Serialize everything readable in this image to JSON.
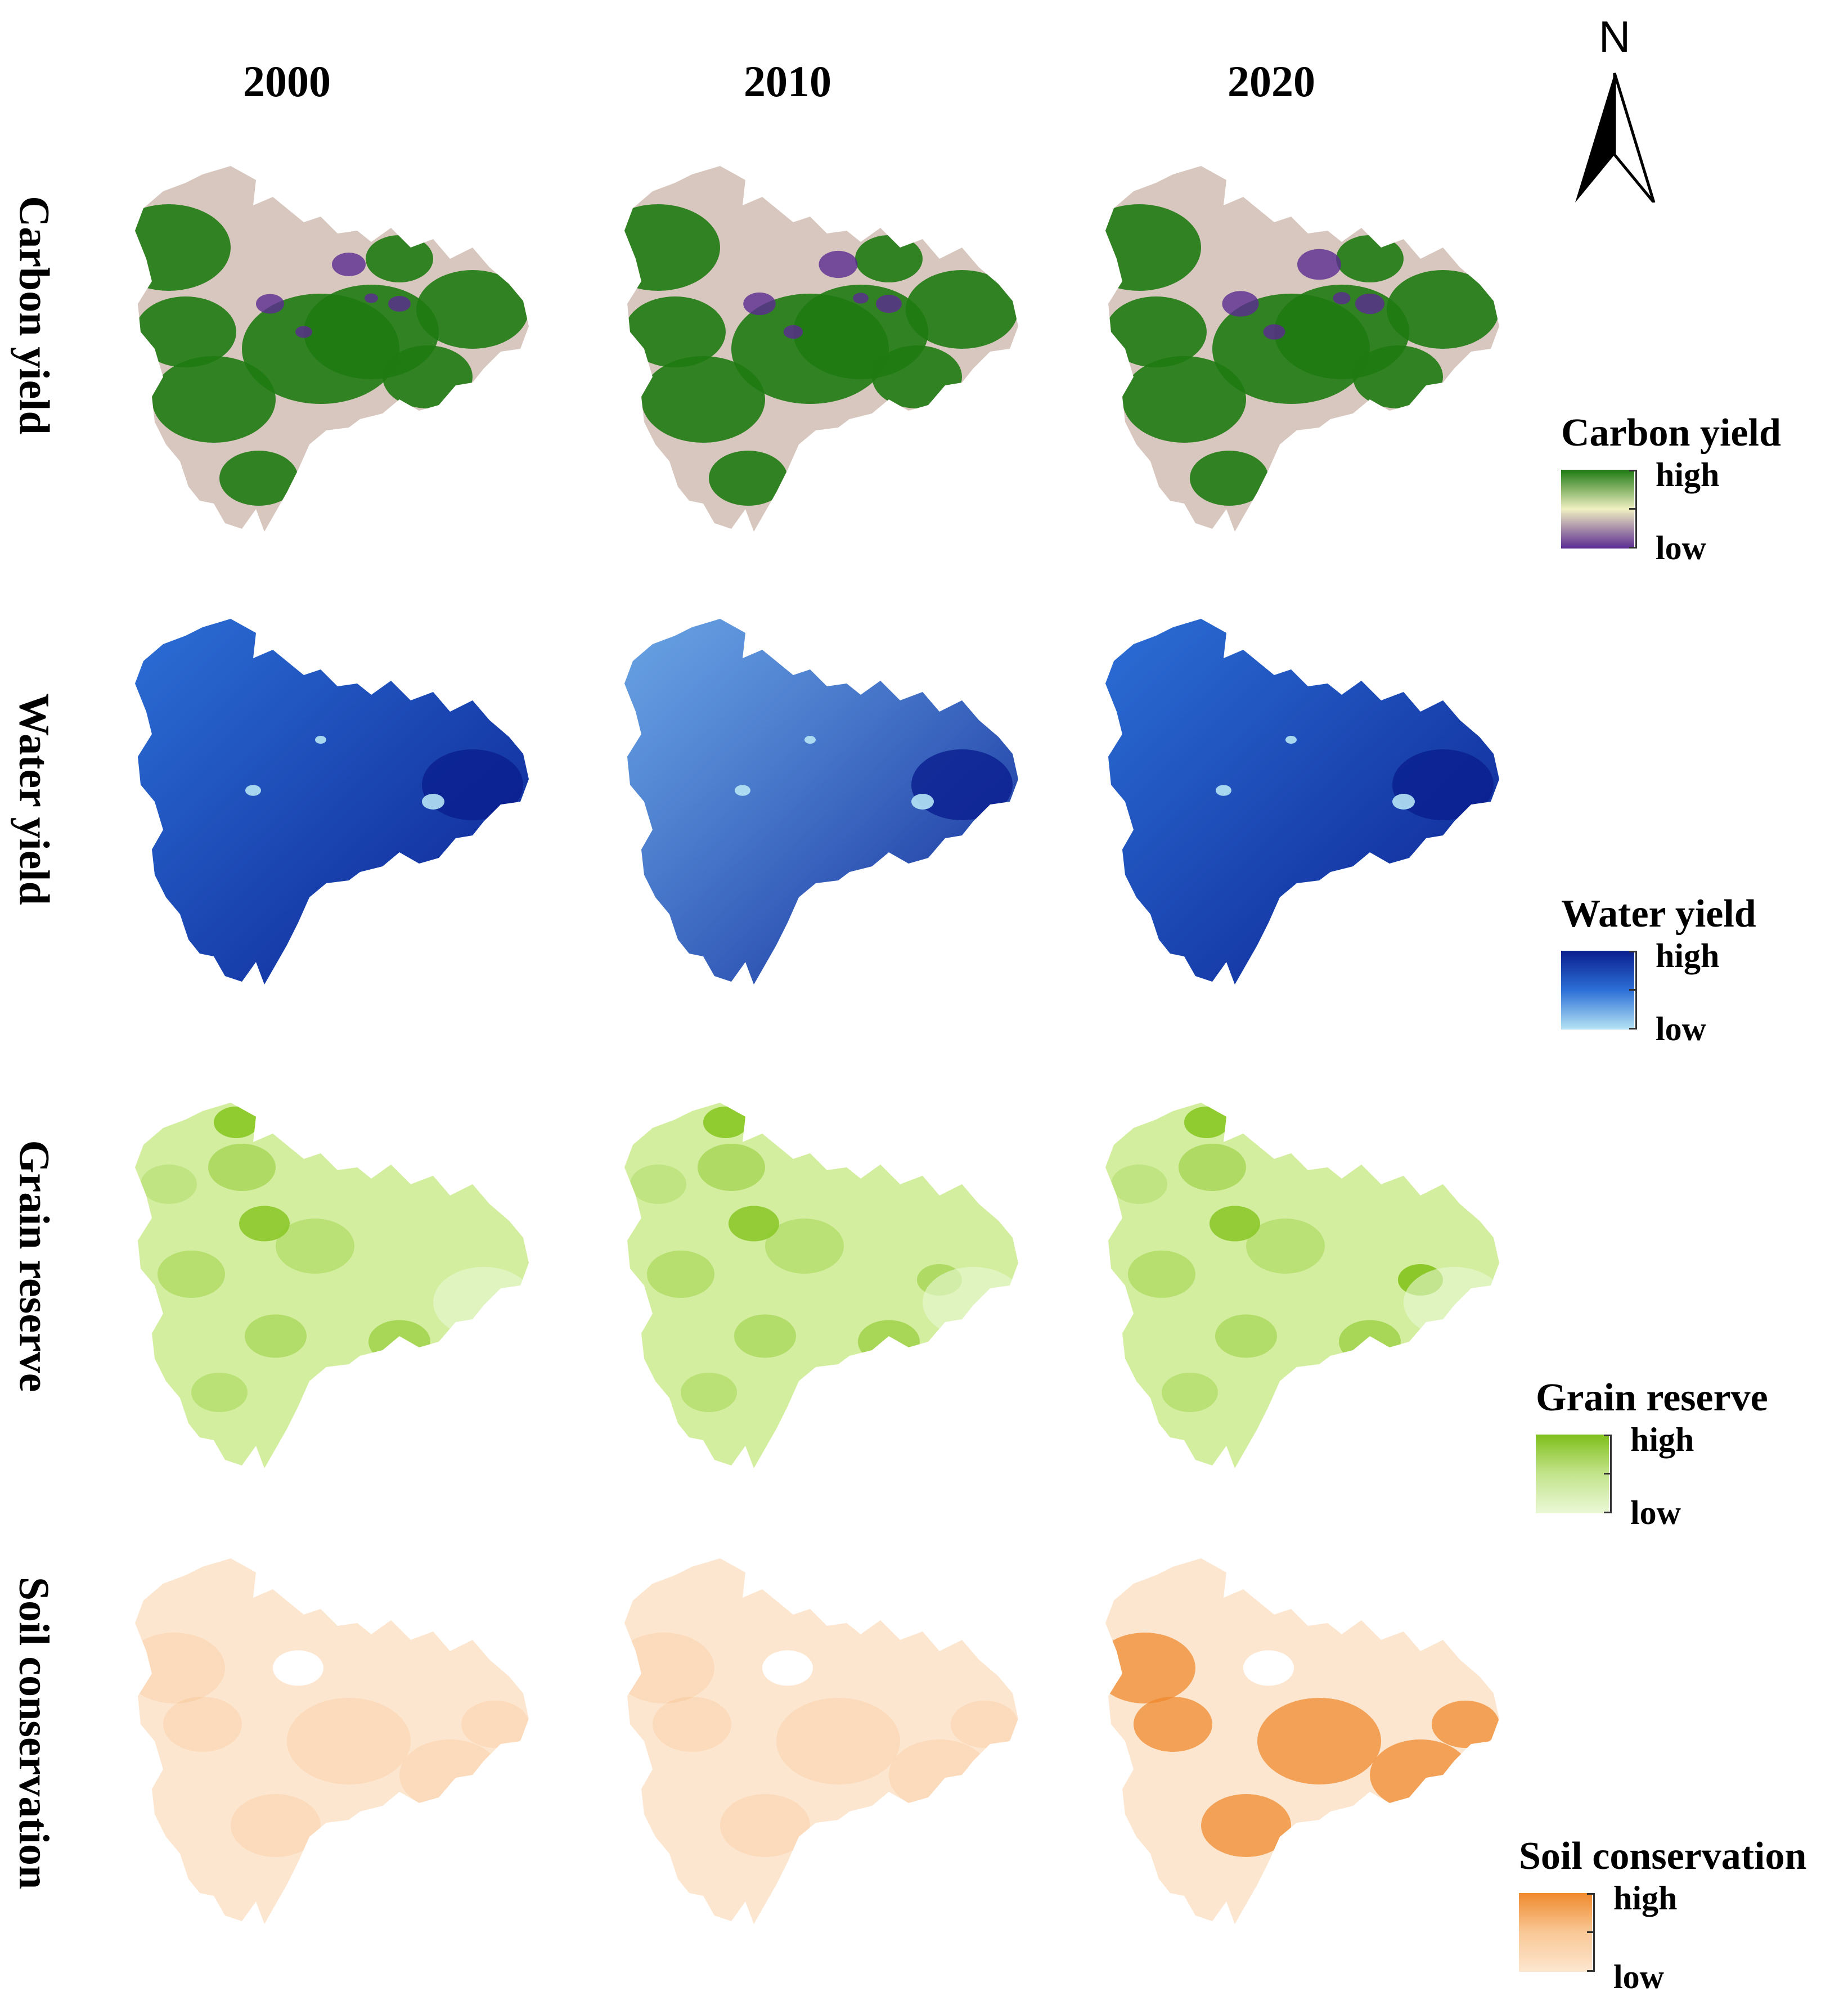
{
  "years": [
    "2000",
    "2010",
    "2020"
  ],
  "north_label": "N",
  "layers": [
    {
      "key": "carbon",
      "label": "Carbon yield",
      "legend_title": "Carbon yield",
      "high": "high",
      "low": "low",
      "colors": {
        "high": "#1f7a12",
        "mid": "#f1f0c2",
        "low": "#5b2a91",
        "base": "#d8c7bf",
        "accent": "#2e8b1e"
      }
    },
    {
      "key": "water",
      "label": "Water yield",
      "legend_title": "Water yield",
      "high": "high",
      "low": "low",
      "colors": {
        "high": "#0a1e8f",
        "mid": "#2c6fd6",
        "low": "#b6e4f5",
        "base": "#2a63cf",
        "accent": "#0f2fa0"
      }
    },
    {
      "key": "grain",
      "label": "Grain reserve",
      "legend_title": "Grain reserve",
      "high": "high",
      "low": "low",
      "colors": {
        "high": "#7fbf1b",
        "mid": "#c3e48c",
        "low": "#eaf8d6",
        "base": "#d3ee9f",
        "accent": "#8cc82a"
      }
    },
    {
      "key": "soil",
      "label": "Soil conservation",
      "legend_title": "Soil conservation",
      "high": "high",
      "low": "low",
      "colors": {
        "high": "#ef8a2e",
        "mid": "#f9c896",
        "low": "#fde6cf",
        "base": "#fbe2c6",
        "accent": "#e59040"
      }
    }
  ]
}
